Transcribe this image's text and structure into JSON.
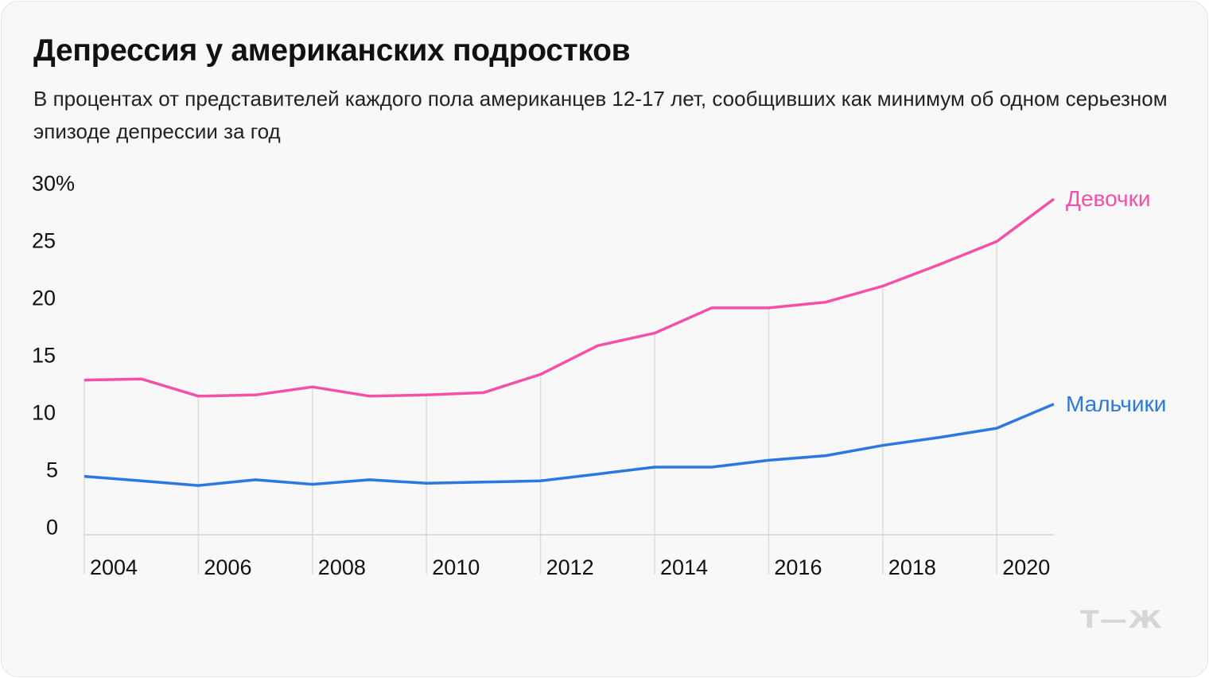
{
  "title": "Депрессия у американских подростков",
  "subtitle": "В процентах от представителей каждого пола американцев 12-17 лет, сообщивших как минимум об одном серьезном эпизоде депрессии за год",
  "logo_text": "Т—Ж",
  "chart_data": {
    "type": "line",
    "title": "Депрессия у американских подростков",
    "x": [
      2004,
      2005,
      2006,
      2007,
      2008,
      2009,
      2010,
      2011,
      2012,
      2013,
      2014,
      2015,
      2016,
      2017,
      2018,
      2019,
      2020,
      2021
    ],
    "x_tick_labels": [
      "2004",
      "2006",
      "2008",
      "2010",
      "2012",
      "2014",
      "2016",
      "2018",
      "2020"
    ],
    "y_tick_labels": [
      "30%",
      "25",
      "20",
      "15",
      "10",
      "5",
      "0"
    ],
    "ylim": [
      0,
      30
    ],
    "grid": "vertical at labeled years",
    "legend": "inline labels at line ends",
    "series": [
      {
        "name": "Девочки",
        "color": "#f550a8",
        "values": [
          13.5,
          13.6,
          12.1,
          12.2,
          12.9,
          12.1,
          12.2,
          12.4,
          14.0,
          16.5,
          17.6,
          19.8,
          19.8,
          20.3,
          21.7,
          23.6,
          25.6,
          29.3
        ]
      },
      {
        "name": "Мальчики",
        "color": "#2a78e0",
        "values": [
          5.1,
          4.7,
          4.3,
          4.8,
          4.4,
          4.8,
          4.5,
          4.6,
          4.7,
          5.3,
          5.9,
          5.9,
          6.5,
          6.9,
          7.8,
          8.5,
          9.3,
          11.4
        ]
      }
    ]
  }
}
